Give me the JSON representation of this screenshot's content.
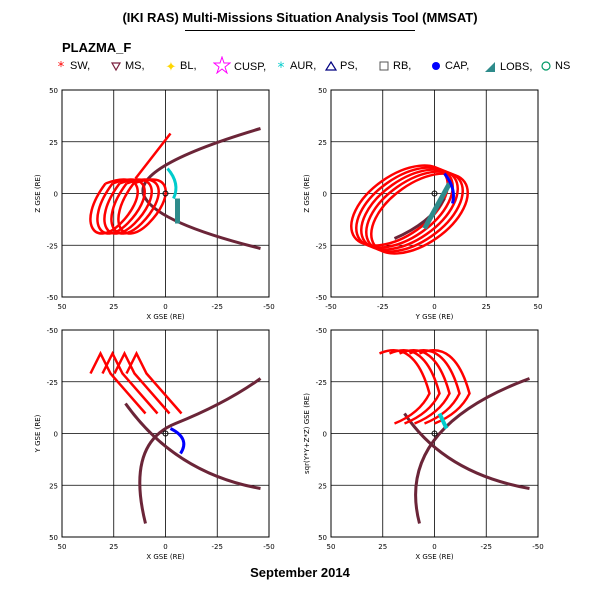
{
  "header": {
    "title": "(IKI RAS) Multi-Missions Situation Analysis Tool (MMSAT)",
    "mission": "PLAZMA_F"
  },
  "legend": [
    {
      "label": "SW,",
      "icon": "red-star-icon",
      "color": "#ff0000"
    },
    {
      "label": "MS,",
      "icon": "maroon-triangle-icon",
      "color": "#7a1f3d"
    },
    {
      "label": "BL,",
      "icon": "yellow-star-icon",
      "color": "#ffd700"
    },
    {
      "label": "CUSP,",
      "icon": "magenta-star-icon",
      "color": "#ff00ff"
    },
    {
      "label": "AUR,",
      "icon": "cyan-asterisk-icon",
      "color": "#00cccc"
    },
    {
      "label": "PS,",
      "icon": "navy-triangle-icon",
      "color": "#000080"
    },
    {
      "label": "RB,",
      "icon": "gray-square-icon",
      "color": "#555555"
    },
    {
      "label": "CAP,",
      "icon": "blue-dot-icon",
      "color": "#0000ff"
    },
    {
      "label": "LOBS,",
      "icon": "teal-wedge-icon",
      "color": "#2e8b8b"
    },
    {
      "label": "NS",
      "icon": "green-circle-icon",
      "color": "#009966"
    }
  ],
  "chart_data": [
    {
      "type": "line",
      "panel": "XZ",
      "xlabel": "X GSE (RE)",
      "ylabel": "Z GSE (RE)",
      "xlim": [
        50,
        -50
      ],
      "ylim": [
        -50,
        50
      ],
      "xticks": [
        50,
        25,
        0,
        -25,
        -50
      ],
      "yticks": [
        50,
        25,
        0,
        -25,
        -50
      ],
      "grid": true
    },
    {
      "type": "line",
      "panel": "YZ",
      "xlabel": "Y GSE (RE)",
      "ylabel": "Z GSE (RE)",
      "xlim": [
        -50,
        50
      ],
      "ylim": [
        -50,
        50
      ],
      "xticks": [
        -50,
        -25,
        0,
        25,
        50
      ],
      "yticks": [
        50,
        25,
        0,
        -25,
        -50
      ],
      "grid": true
    },
    {
      "type": "line",
      "panel": "XY",
      "xlabel": "X GSE (RE)",
      "ylabel": "Y GSE (RE)",
      "xlim": [
        50,
        -50
      ],
      "ylim": [
        -50,
        50
      ],
      "xticks": [
        50,
        25,
        0,
        -25,
        -50
      ],
      "yticks": [
        -50,
        -25,
        0,
        25,
        50
      ],
      "grid": true
    },
    {
      "type": "line",
      "panel": "X-R",
      "xlabel": "X GSE (RE)",
      "ylabel": "sqr(Y*Y+Z*Z) GSE (RE)",
      "xlim": [
        50,
        -50
      ],
      "ylim": [
        -50,
        50
      ],
      "xticks": [
        50,
        25,
        0,
        -25,
        -50
      ],
      "yticks": [
        -50,
        -25,
        0,
        25,
        50
      ],
      "grid": true
    }
  ],
  "footer": {
    "date": "September 2014"
  }
}
